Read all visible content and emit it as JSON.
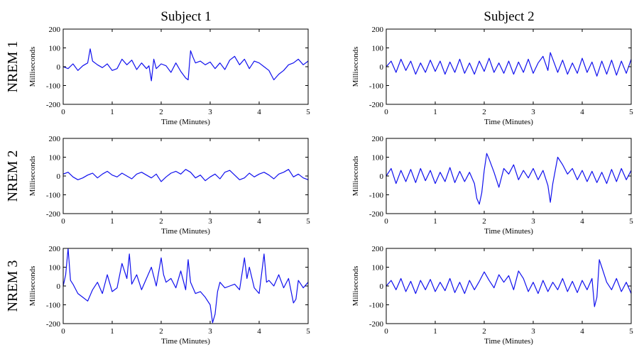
{
  "column_titles": [
    "Subject 1",
    "Subject 2"
  ],
  "row_labels": [
    "NREM 1",
    "NREM 2",
    "NREM 3"
  ],
  "colors": {
    "trace": "#1010ee",
    "axes": "#000000"
  },
  "chart_data": [
    {
      "type": "line",
      "subject": "Subject 1",
      "stage": "NREM 1",
      "xlabel": "Time (Minutes)",
      "ylabel": "Milliseconds",
      "xlim": [
        0,
        5
      ],
      "ylim": [
        -200,
        200
      ],
      "xticks": [
        0,
        1,
        2,
        3,
        4,
        5
      ],
      "yticks": [
        200,
        100,
        0,
        -100,
        -200
      ],
      "x": [
        0,
        0.1,
        0.2,
        0.3,
        0.4,
        0.5,
        0.55,
        0.6,
        0.7,
        0.8,
        0.9,
        1.0,
        1.1,
        1.2,
        1.3,
        1.4,
        1.5,
        1.6,
        1.7,
        1.75,
        1.8,
        1.85,
        1.9,
        2.0,
        2.1,
        2.2,
        2.3,
        2.4,
        2.5,
        2.55,
        2.6,
        2.65,
        2.7,
        2.8,
        2.9,
        3.0,
        3.1,
        3.2,
        3.3,
        3.4,
        3.5,
        3.6,
        3.7,
        3.8,
        3.9,
        4.0,
        4.1,
        4.2,
        4.3,
        4.4,
        4.5,
        4.6,
        4.7,
        4.8,
        4.9,
        5.0
      ],
      "y": [
        0,
        -10,
        15,
        -20,
        5,
        20,
        95,
        30,
        10,
        -5,
        15,
        -20,
        -10,
        40,
        10,
        35,
        -15,
        20,
        -10,
        5,
        -75,
        40,
        -10,
        15,
        5,
        -30,
        20,
        -25,
        -60,
        -70,
        85,
        50,
        20,
        30,
        10,
        25,
        -10,
        20,
        -15,
        35,
        55,
        10,
        40,
        -10,
        30,
        20,
        0,
        -20,
        -70,
        -40,
        -20,
        10,
        20,
        40,
        10,
        30
      ]
    },
    {
      "type": "line",
      "subject": "Subject 2",
      "stage": "NREM 1",
      "xlabel": "Time (Minutes)",
      "ylabel": "Milliseconds",
      "xlim": [
        0,
        5
      ],
      "ylim": [
        -200,
        200
      ],
      "xticks": [
        0,
        1,
        2,
        3,
        4,
        5
      ],
      "yticks": [
        200,
        100,
        0,
        -100,
        -200
      ],
      "x": [
        0,
        0.1,
        0.2,
        0.3,
        0.4,
        0.5,
        0.6,
        0.7,
        0.8,
        0.9,
        1.0,
        1.1,
        1.2,
        1.3,
        1.4,
        1.5,
        1.6,
        1.7,
        1.8,
        1.9,
        2.0,
        2.1,
        2.2,
        2.3,
        2.4,
        2.5,
        2.6,
        2.7,
        2.8,
        2.9,
        3.0,
        3.1,
        3.2,
        3.3,
        3.35,
        3.4,
        3.5,
        3.6,
        3.7,
        3.8,
        3.9,
        4.0,
        4.1,
        4.2,
        4.3,
        4.4,
        4.5,
        4.6,
        4.7,
        4.8,
        4.9,
        5.0
      ],
      "y": [
        0,
        30,
        -30,
        40,
        -20,
        30,
        -40,
        20,
        -30,
        35,
        -25,
        30,
        -40,
        25,
        -30,
        40,
        -35,
        20,
        -40,
        30,
        -25,
        45,
        -30,
        20,
        -35,
        30,
        -40,
        25,
        -30,
        40,
        -35,
        20,
        55,
        -20,
        75,
        40,
        -30,
        35,
        -40,
        20,
        -35,
        45,
        -30,
        25,
        -50,
        30,
        -40,
        35,
        -45,
        30,
        -35,
        40
      ]
    },
    {
      "type": "line",
      "subject": "Subject 1",
      "stage": "NREM 2",
      "xlabel": "Time (Minutes)",
      "ylabel": "Milliseconds",
      "xlim": [
        0,
        5
      ],
      "ylim": [
        -200,
        200
      ],
      "xticks": [
        0,
        1,
        2,
        3,
        4,
        5
      ],
      "yticks": [
        200,
        100,
        0,
        -100,
        -200
      ],
      "x": [
        0,
        0.1,
        0.2,
        0.3,
        0.4,
        0.5,
        0.6,
        0.7,
        0.8,
        0.9,
        1.0,
        1.1,
        1.2,
        1.3,
        1.4,
        1.5,
        1.6,
        1.7,
        1.8,
        1.9,
        2.0,
        2.1,
        2.2,
        2.3,
        2.4,
        2.5,
        2.6,
        2.7,
        2.8,
        2.9,
        3.0,
        3.1,
        3.2,
        3.3,
        3.4,
        3.5,
        3.6,
        3.7,
        3.8,
        3.9,
        4.0,
        4.1,
        4.2,
        4.3,
        4.4,
        4.5,
        4.6,
        4.7,
        4.8,
        4.9,
        5.0
      ],
      "y": [
        10,
        20,
        -5,
        -20,
        -10,
        5,
        15,
        -10,
        10,
        25,
        5,
        -5,
        15,
        0,
        -15,
        10,
        20,
        5,
        -10,
        10,
        -30,
        -5,
        15,
        25,
        10,
        35,
        20,
        -10,
        5,
        -25,
        -5,
        10,
        -15,
        20,
        30,
        5,
        -20,
        -10,
        15,
        -5,
        10,
        20,
        5,
        -15,
        10,
        20,
        35,
        -5,
        10,
        -10,
        -20
      ]
    },
    {
      "type": "line",
      "subject": "Subject 2",
      "stage": "NREM 2",
      "xlabel": "Time (Minutes)",
      "ylabel": "Milliseconds",
      "xlim": [
        0,
        5
      ],
      "ylim": [
        -200,
        200
      ],
      "xticks": [
        0,
        1,
        2,
        3,
        4,
        5
      ],
      "yticks": [
        200,
        100,
        0,
        -100,
        -200
      ],
      "x": [
        0,
        0.1,
        0.2,
        0.3,
        0.4,
        0.5,
        0.6,
        0.7,
        0.8,
        0.9,
        1.0,
        1.1,
        1.2,
        1.3,
        1.4,
        1.5,
        1.6,
        1.7,
        1.8,
        1.85,
        1.9,
        1.95,
        2.0,
        2.05,
        2.1,
        2.2,
        2.3,
        2.4,
        2.5,
        2.6,
        2.7,
        2.8,
        2.9,
        3.0,
        3.1,
        3.2,
        3.3,
        3.35,
        3.4,
        3.5,
        3.6,
        3.7,
        3.8,
        3.9,
        4.0,
        4.1,
        4.2,
        4.3,
        4.4,
        4.5,
        4.6,
        4.7,
        4.8,
        4.9,
        5.0
      ],
      "y": [
        0,
        40,
        -40,
        30,
        -30,
        35,
        -35,
        40,
        -25,
        30,
        -40,
        20,
        -30,
        45,
        -35,
        25,
        -30,
        20,
        -40,
        -120,
        -150,
        -90,
        30,
        120,
        90,
        20,
        -60,
        40,
        10,
        60,
        -20,
        30,
        -10,
        40,
        -20,
        30,
        -50,
        -140,
        -40,
        100,
        60,
        10,
        40,
        -20,
        30,
        -30,
        25,
        -35,
        20,
        -40,
        35,
        -30,
        40,
        -20,
        30
      ]
    },
    {
      "type": "line",
      "subject": "Subject 1",
      "stage": "NREM 3",
      "xlabel": "Time (Minutes)",
      "ylabel": "Milliseconds",
      "xlim": [
        0,
        5
      ],
      "ylim": [
        -200,
        200
      ],
      "xticks": [
        0,
        1,
        2,
        3,
        4,
        5
      ],
      "yticks": [
        200,
        100,
        0,
        -100,
        -200
      ],
      "x": [
        0,
        0.05,
        0.1,
        0.15,
        0.2,
        0.3,
        0.4,
        0.5,
        0.6,
        0.7,
        0.8,
        0.9,
        1.0,
        1.1,
        1.2,
        1.3,
        1.35,
        1.4,
        1.5,
        1.6,
        1.7,
        1.8,
        1.9,
        2.0,
        2.05,
        2.1,
        2.2,
        2.3,
        2.4,
        2.5,
        2.55,
        2.6,
        2.7,
        2.8,
        2.9,
        3.0,
        3.05,
        3.1,
        3.15,
        3.2,
        3.3,
        3.4,
        3.5,
        3.6,
        3.7,
        3.75,
        3.8,
        3.9,
        4.0,
        4.1,
        4.15,
        4.2,
        4.3,
        4.4,
        4.5,
        4.6,
        4.7,
        4.75,
        4.8,
        4.9,
        5.0
      ],
      "y": [
        0,
        60,
        200,
        30,
        10,
        -40,
        -60,
        -80,
        -20,
        20,
        -40,
        60,
        -30,
        -10,
        120,
        40,
        170,
        10,
        60,
        -20,
        40,
        100,
        0,
        150,
        60,
        20,
        40,
        -10,
        80,
        -20,
        140,
        20,
        -40,
        -30,
        -60,
        -100,
        -195,
        -150,
        -30,
        20,
        -10,
        0,
        10,
        -20,
        150,
        40,
        100,
        -10,
        -40,
        170,
        20,
        30,
        0,
        60,
        -10,
        40,
        -90,
        -70,
        30,
        -10,
        20
      ]
    },
    {
      "type": "line",
      "subject": "Subject 2",
      "stage": "NREM 3",
      "xlabel": "Time (Minutes)",
      "ylabel": "Milliseconds",
      "xlim": [
        0,
        5
      ],
      "ylim": [
        -200,
        200
      ],
      "xticks": [
        0,
        1,
        2,
        3,
        4,
        5
      ],
      "yticks": [
        200,
        100,
        0,
        -100,
        -200
      ],
      "x": [
        0,
        0.1,
        0.2,
        0.3,
        0.4,
        0.5,
        0.6,
        0.7,
        0.8,
        0.9,
        1.0,
        1.1,
        1.2,
        1.3,
        1.4,
        1.5,
        1.6,
        1.7,
        1.8,
        1.9,
        2.0,
        2.1,
        2.2,
        2.3,
        2.4,
        2.5,
        2.6,
        2.7,
        2.8,
        2.9,
        3.0,
        3.1,
        3.2,
        3.3,
        3.4,
        3.5,
        3.6,
        3.7,
        3.8,
        3.9,
        4.0,
        4.1,
        4.2,
        4.25,
        4.3,
        4.35,
        4.4,
        4.5,
        4.6,
        4.7,
        4.8,
        4.9,
        5.0
      ],
      "y": [
        0,
        30,
        -20,
        40,
        -30,
        25,
        -40,
        30,
        -20,
        35,
        -30,
        20,
        -25,
        40,
        -35,
        20,
        -40,
        30,
        -20,
        25,
        75,
        30,
        -10,
        60,
        20,
        55,
        -20,
        80,
        40,
        -30,
        20,
        -40,
        30,
        -30,
        20,
        -20,
        40,
        -30,
        25,
        -35,
        30,
        -20,
        40,
        -110,
        -60,
        140,
        100,
        20,
        -20,
        40,
        -30,
        20,
        -40
      ]
    }
  ]
}
